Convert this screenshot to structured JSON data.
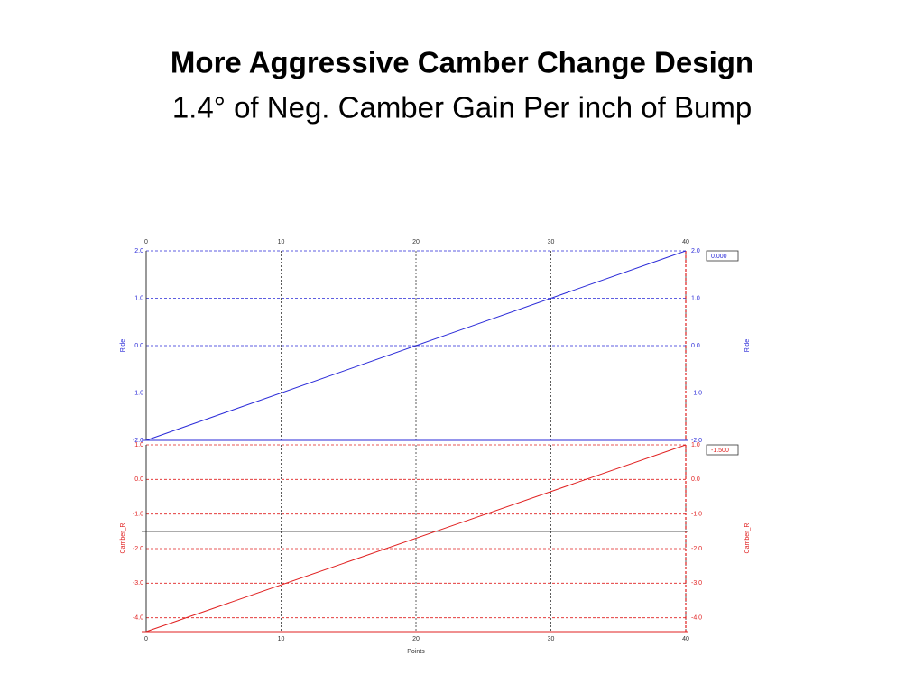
{
  "header": {
    "title": "More Aggressive Camber Change Design",
    "subtitle": "1.4° of Neg. Camber Gain Per inch of Bump"
  },
  "chart_data": [
    {
      "type": "line",
      "ylabel": "Ride",
      "x": [
        0,
        40
      ],
      "values": [
        -2.0,
        2.0
      ],
      "color": "#2a2ad8",
      "xlim": [
        0,
        40
      ],
      "xticks": [
        0,
        10,
        20,
        30,
        40
      ],
      "ylim": [
        -2.0,
        2.0
      ],
      "yticks": [
        {
          "value": -2.0,
          "label": "-2.0"
        },
        {
          "value": -1.0,
          "label": "-1.0"
        },
        {
          "value": 0.0,
          "label": "0.0"
        },
        {
          "value": 1.0,
          "label": "1.0"
        },
        {
          "value": 2.0,
          "label": "2.0"
        }
      ],
      "readout": "0.000",
      "grid": true
    },
    {
      "type": "line",
      "ylabel": "Camber_R",
      "xlabel": "Points",
      "x": [
        0,
        40
      ],
      "values": [
        -4.4,
        1.0
      ],
      "color": "#e02020",
      "xlim": [
        0,
        40
      ],
      "xticks": [
        0,
        10,
        20,
        30,
        40
      ],
      "ylim": [
        -4.4,
        1.0
      ],
      "yticks": [
        {
          "value": -4.0,
          "label": "-4.0"
        },
        {
          "value": -3.0,
          "label": "-3.0"
        },
        {
          "value": -2.0,
          "label": "-2.0"
        },
        {
          "value": -1.0,
          "label": "-1.0"
        },
        {
          "value": 0.0,
          "label": "0.0"
        },
        {
          "value": 1.0,
          "label": "1.0"
        }
      ],
      "cursor": -1.5,
      "readout": "-1.500",
      "grid": true
    }
  ]
}
